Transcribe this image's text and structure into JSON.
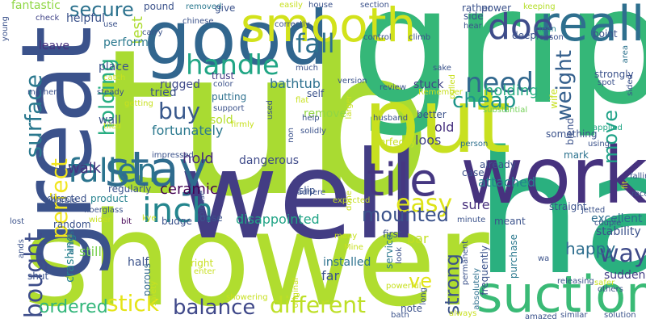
{
  "word_cloud": {
    "words": [
      {
        "text": "tub",
        "color": "#a9db32"
      },
      {
        "text": "grip",
        "color": "#35b778"
      },
      {
        "text": "shower",
        "color": "#b0dd2f"
      },
      {
        "text": "ha",
        "color": "#2ab07f"
      },
      {
        "text": "well",
        "color": "#433d84"
      },
      {
        "text": "good",
        "color": "#31668e"
      },
      {
        "text": "great",
        "color": "#3b528b"
      },
      {
        "text": "put",
        "color": "#c8e020"
      },
      {
        "text": "work",
        "color": "#46327e"
      },
      {
        "text": "smooth",
        "color": "#d2e21b"
      },
      {
        "text": "really",
        "color": "#2e6f8e"
      },
      {
        "text": "suction",
        "color": "#3aba76"
      },
      {
        "text": "stay",
        "color": "#2f6c8e"
      },
      {
        "text": "tile",
        "color": "#453781"
      },
      {
        "text": "doe",
        "color": "#3e4c8a"
      },
      {
        "text": "fall",
        "color": "#2d708e"
      },
      {
        "text": "handle",
        "color": "#21a685"
      },
      {
        "text": "inch",
        "color": "#24868e"
      },
      {
        "text": "easy",
        "color": "#dde318"
      },
      {
        "text": "need",
        "color": "#31688e"
      },
      {
        "text": "holding",
        "color": "#27ad81"
      },
      {
        "text": "surface",
        "color": "#2a788e"
      },
      {
        "text": "fallen",
        "color": "#2b748e"
      },
      {
        "text": "bought",
        "color": "#3d4d8a"
      },
      {
        "text": "perfect",
        "color": "#f1e51d"
      },
      {
        "text": "secure",
        "color": "#2c728e"
      },
      {
        "text": "buy",
        "color": "#38588c"
      },
      {
        "text": "cheap",
        "color": "#1f958b"
      },
      {
        "text": "weight",
        "color": "#35608d"
      },
      {
        "text": "way",
        "color": "#3e4a89"
      },
      {
        "text": "mounted",
        "color": "#3b528b"
      },
      {
        "text": "different",
        "color": "#bddf26"
      },
      {
        "text": "balance",
        "color": "#3f4889"
      },
      {
        "text": "stick",
        "color": "#e5e419"
      },
      {
        "text": "ordered",
        "color": "#32b67a"
      },
      {
        "text": "move",
        "color": "#1fa287"
      },
      {
        "text": "strong",
        "color": "#3b528b"
      },
      {
        "text": "ve",
        "color": "#e2e418"
      },
      {
        "text": "happy",
        "color": "#2e6e8e"
      },
      {
        "text": "disappointed",
        "color": "#20a486"
      },
      {
        "text": "hold",
        "color": "#472c7a"
      },
      {
        "text": "rugged",
        "color": "#3e4989"
      },
      {
        "text": "bathtub",
        "color": "#2d708e"
      },
      {
        "text": "test",
        "color": "#addc30"
      },
      {
        "text": "holding",
        "color": "#27ad81"
      },
      {
        "text": "remove",
        "color": "#90d743"
      },
      {
        "text": "stuck",
        "color": "#404588"
      },
      {
        "text": "loos",
        "color": "#414287"
      },
      {
        "text": "old",
        "color": "#46307e"
      },
      {
        "text": "bar",
        "color": "#c2df23"
      },
      {
        "text": "sure",
        "color": "#472f7d"
      },
      {
        "text": "attached",
        "color": "#25838e"
      },
      {
        "text": "excellent",
        "color": "#2e6e8e"
      },
      {
        "text": "stability",
        "color": "#3b528b"
      },
      {
        "text": "suddenly",
        "color": "#433e85"
      },
      {
        "text": "far",
        "color": "#3b528b"
      },
      {
        "text": "ceramic",
        "color": "#440154"
      },
      {
        "text": "wall",
        "color": "#3b528b"
      },
      {
        "text": "walk",
        "color": "#46337f"
      },
      {
        "text": "still",
        "color": "#7ad151"
      },
      {
        "text": "half",
        "color": "#3b528b"
      },
      {
        "text": "crashing",
        "color": "#26828e"
      },
      {
        "text": "porous",
        "color": "#31688e"
      },
      {
        "text": "installed",
        "color": "#2c728e"
      },
      {
        "text": "dangerous",
        "color": "#3e4a89"
      },
      {
        "text": "fortunately",
        "color": "#2a788e"
      },
      {
        "text": "putting",
        "color": "#2d708e"
      },
      {
        "text": "sold",
        "color": "#b5de2b"
      },
      {
        "text": "trust",
        "color": "#443983"
      },
      {
        "text": "tried",
        "color": "#3b528b"
      },
      {
        "text": "perform",
        "color": "#2a788e"
      },
      {
        "text": "place",
        "color": "#3b528b"
      },
      {
        "text": "leave",
        "color": "#46307e"
      },
      {
        "text": "helpful",
        "color": "#3b528b"
      },
      {
        "text": "fantastic",
        "color": "#8fd744"
      },
      {
        "text": "check",
        "color": "#414487"
      },
      {
        "text": "young",
        "color": "#3b528b"
      },
      {
        "text": "pound",
        "color": "#3b528b"
      },
      {
        "text": "removed",
        "color": "#2a788e"
      },
      {
        "text": "give",
        "color": "#3b528b"
      },
      {
        "text": "chinese",
        "color": "#3b528b"
      },
      {
        "text": "easily",
        "color": "#c8e020"
      },
      {
        "text": "house",
        "color": "#3b528b"
      },
      {
        "text": "section",
        "color": "#3b528b"
      },
      {
        "text": "rather",
        "color": "#3b528b"
      },
      {
        "text": "power",
        "color": "#3b528b"
      },
      {
        "text": "keeping",
        "color": "#b5de2b"
      },
      {
        "text": "side",
        "color": "#3b528b"
      },
      {
        "text": "hear",
        "color": "#3b528b"
      },
      {
        "text": "deep",
        "color": "#3b528b"
      },
      {
        "text": "clean",
        "color": "#26828e"
      },
      {
        "text": "reason",
        "color": "#3b528b"
      },
      {
        "text": "point",
        "color": "#3b528b"
      },
      {
        "text": "area",
        "color": "#2c728e"
      },
      {
        "text": "strongly",
        "color": "#3b528b"
      },
      {
        "text": "spot",
        "color": "#3b528b"
      },
      {
        "text": "sided",
        "color": "#3b528b"
      },
      {
        "text": "blend",
        "color": "#3b528b"
      },
      {
        "text": "applied",
        "color": "#22a785"
      },
      {
        "text": "using",
        "color": "#3b528b"
      },
      {
        "text": "something",
        "color": "#3b528b"
      },
      {
        "text": "mark",
        "color": "#2c728e"
      },
      {
        "text": "falling",
        "color": "#3b528b"
      },
      {
        "text": "fit",
        "color": "#c8e020"
      },
      {
        "text": "recommend",
        "color": "#3b528b"
      },
      {
        "text": "wife",
        "color": "#c8e020"
      },
      {
        "text": "substantial",
        "color": "#73d056"
      },
      {
        "text": "already",
        "color": "#3b528b"
      },
      {
        "text": "case",
        "color": "#3b528b"
      },
      {
        "text": "person",
        "color": "#2d708e"
      },
      {
        "text": "meant",
        "color": "#3b528b"
      },
      {
        "text": "purchase",
        "color": "#2a788e"
      },
      {
        "text": "frequently",
        "color": "#3b528b"
      },
      {
        "text": "absolutely",
        "color": "#2d708e"
      },
      {
        "text": "minute",
        "color": "#3b528b"
      },
      {
        "text": "first",
        "color": "#3b528b"
      },
      {
        "text": "service",
        "color": "#2a788e"
      },
      {
        "text": "look",
        "color": "#3b528b"
      },
      {
        "text": "permanent",
        "color": "#3b528b"
      },
      {
        "text": "powerful",
        "color": "#c8e020"
      },
      {
        "text": "long",
        "color": "#3b528b"
      },
      {
        "text": "note",
        "color": "#3b528b"
      },
      {
        "text": "always",
        "color": "#c8e020"
      },
      {
        "text": "bath",
        "color": "#3b528b"
      },
      {
        "text": "amazed",
        "color": "#3b528b"
      },
      {
        "text": "similar",
        "color": "#3b528b"
      },
      {
        "text": "solution",
        "color": "#3b528b"
      },
      {
        "text": "others",
        "color": "#3b528b"
      },
      {
        "text": "safer",
        "color": "#c8e020"
      },
      {
        "text": "releasing",
        "color": "#3b528b"
      },
      {
        "text": "wa",
        "color": "#3b528b"
      },
      {
        "text": "jetted",
        "color": "#3b528b"
      },
      {
        "text": "couple",
        "color": "#3b528b"
      },
      {
        "text": "straight",
        "color": "#3b528b"
      },
      {
        "text": "loose",
        "color": "#3b528b"
      },
      {
        "text": "budge",
        "color": "#3b528b"
      },
      {
        "text": "bit",
        "color": "#440154"
      },
      {
        "text": "regularly",
        "color": "#3b528b"
      },
      {
        "text": "product",
        "color": "#26828e"
      },
      {
        "text": "random",
        "color": "#3b528b"
      },
      {
        "text": "directed",
        "color": "#3b528b"
      },
      {
        "text": "marble",
        "color": "#3b528b"
      },
      {
        "text": "lost",
        "color": "#3b528b"
      },
      {
        "text": "fiberglass",
        "color": "#3b528b"
      },
      {
        "text": "ands",
        "color": "#3b528b"
      },
      {
        "text": "shut",
        "color": "#3b528b"
      },
      {
        "text": "almost",
        "color": "#2c728e"
      },
      {
        "text": "wider",
        "color": "#c8e020"
      },
      {
        "text": "kye",
        "color": "#c8e020"
      },
      {
        "text": "impressed",
        "color": "#3b528b"
      },
      {
        "text": "please",
        "color": "#3b528b"
      },
      {
        "text": "right",
        "color": "#c8e020"
      },
      {
        "text": "enter",
        "color": "#c8e020"
      },
      {
        "text": "safety",
        "color": "#c8e020"
      },
      {
        "text": "showering",
        "color": "#c8e020"
      },
      {
        "text": "Mine",
        "color": "#c8e020"
      },
      {
        "text": "many",
        "color": "#c8e020"
      },
      {
        "text": "done",
        "color": "#c8e020"
      },
      {
        "text": "expected",
        "color": "#c8e020"
      },
      {
        "text": "original",
        "color": "#c8e020"
      },
      {
        "text": "adhere",
        "color": "#3b528b"
      },
      {
        "text": "slip",
        "color": "#3b528b"
      },
      {
        "text": "non",
        "color": "#3b528b"
      },
      {
        "text": "used",
        "color": "#3b528b"
      },
      {
        "text": "solidly",
        "color": "#3b528b"
      },
      {
        "text": "help",
        "color": "#3b528b"
      },
      {
        "text": "flat",
        "color": "#c8e020"
      },
      {
        "text": "larger",
        "color": "#c8e020"
      },
      {
        "text": "perfectly",
        "color": "#c8e020"
      },
      {
        "text": "better",
        "color": "#3b528b"
      },
      {
        "text": "husband",
        "color": "#3b528b"
      },
      {
        "text": "self",
        "color": "#3b528b"
      },
      {
        "text": "much",
        "color": "#3b528b"
      },
      {
        "text": "version",
        "color": "#3b528b"
      },
      {
        "text": "review",
        "color": "#3b528b"
      },
      {
        "text": "Remember",
        "color": "#c8e020"
      },
      {
        "text": "sake",
        "color": "#3b528b"
      },
      {
        "text": "pulled",
        "color": "#c8e020"
      },
      {
        "text": "control",
        "color": "#3b528b"
      },
      {
        "text": "climb",
        "color": "#3b528b"
      },
      {
        "text": "correctly",
        "color": "#3b528b"
      },
      {
        "text": "color",
        "color": "#3b528b"
      },
      {
        "text": "support",
        "color": "#3b528b"
      },
      {
        "text": "firmly",
        "color": "#c8e020"
      },
      {
        "text": "getting",
        "color": "#c8e020"
      },
      {
        "text": "steady",
        "color": "#3b528b"
      },
      {
        "text": "catch",
        "color": "#c8e020"
      },
      {
        "text": "tiled",
        "color": "#c8e020"
      },
      {
        "text": "use",
        "color": "#3b528b"
      },
      {
        "text": "carry",
        "color": "#3b528b"
      },
      {
        "text": "mother",
        "color": "#3b528b"
      },
      {
        "text": "find",
        "color": "#3b528b"
      }
    ]
  }
}
